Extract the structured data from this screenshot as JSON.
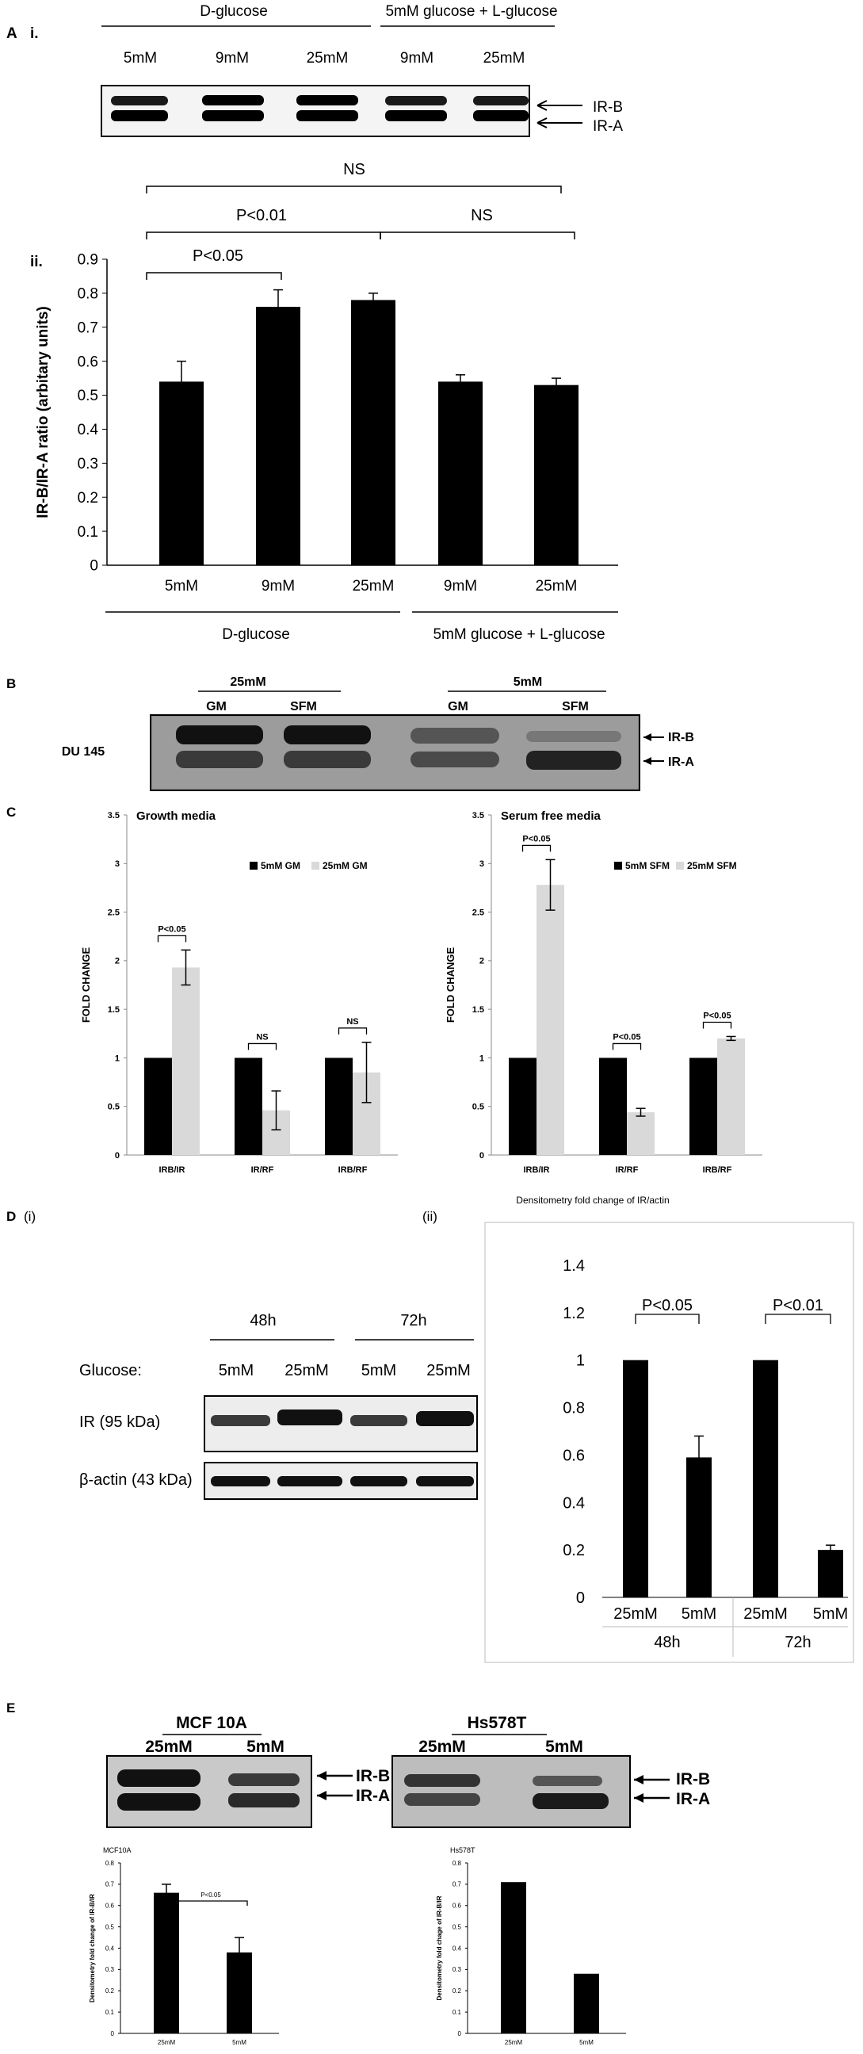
{
  "panels": {
    "A": {
      "panel_label": "A",
      "blot": {
        "sublabel": "i.",
        "group_labels": [
          "D-glucose",
          "5mM glucose + L-glucose"
        ],
        "lane_labels": [
          "5mM",
          "9mM",
          "25mM",
          "9mM",
          "25mM"
        ],
        "band_labels": [
          "IR-B",
          "IR-A"
        ]
      },
      "sig_top": "NS",
      "sig_mid_left": "P<0.01",
      "sig_mid_right": "NS",
      "sig_low": "P<0.05",
      "chart_sublabel": "ii.",
      "group_labels": [
        "D-glucose",
        "5mM glucose + L-glucose"
      ]
    },
    "B": {
      "panel_label": "B",
      "cell_line": "DU 145",
      "conc_labels": [
        "25mM",
        "5mM"
      ],
      "lane_labels": [
        "GM",
        "SFM",
        "GM",
        "SFM"
      ],
      "band_labels": [
        "IR-B",
        "IR-A"
      ]
    },
    "C": {
      "panel_label": "C",
      "sig_left": [
        "P<0.05",
        "NS",
        "NS"
      ],
      "sig_right": [
        "P<0.05",
        "P<0.05",
        "P<0.05"
      ]
    },
    "D": {
      "panel_label": "D",
      "sublabel_i": "(i)",
      "sublabel_ii": "(ii)",
      "blot": {
        "time_labels": [
          "48h",
          "72h"
        ],
        "glucose_label": "Glucose:",
        "lane_labels": [
          "5mM",
          "25mM",
          "5mM",
          "25mM"
        ],
        "row_labels": [
          "IR (95 kDa)",
          "β-actin (43 kDa)"
        ]
      },
      "sig": [
        "P<0.05",
        "P<0.01"
      ]
    },
    "E": {
      "panel_label": "E",
      "blots": [
        {
          "cell_line": "MCF 10A",
          "lane_labels": [
            "25mM",
            "5mM"
          ],
          "band_labels": [
            "IR-B",
            "IR-A"
          ]
        },
        {
          "cell_line": "Hs578T",
          "lane_labels": [
            "25mM",
            "5mM"
          ],
          "band_labels": [
            "IR-B",
            "IR-A"
          ]
        }
      ],
      "sig": "P<0.05"
    }
  },
  "chart_data": [
    {
      "id": "A-ii",
      "type": "bar",
      "categories": [
        "5mM",
        "9mM",
        "25mM",
        "9mM",
        "25mM"
      ],
      "values": [
        0.54,
        0.76,
        0.78,
        0.54,
        0.53
      ],
      "errors": [
        0.06,
        0.05,
        0.02,
        0.02,
        0.02
      ],
      "ylabel": "IR-B/IR-A ratio (arbitary units)",
      "ylim": [
        0,
        0.9
      ],
      "yticks": [
        "0",
        "0.1",
        "0.2",
        "0.3",
        "0.4",
        "0.5",
        "0.6",
        "0.7",
        "0.8",
        "0.9"
      ],
      "colors": [
        "#000000"
      ]
    },
    {
      "id": "C-left",
      "type": "bar",
      "title": "Growth media",
      "categories": [
        "IRB/IR",
        "IR/RF",
        "IRB/RF"
      ],
      "series": [
        {
          "name": "5mM GM",
          "values": [
            1,
            1,
            1
          ],
          "errors": [
            0,
            0,
            0
          ],
          "color": "#000000"
        },
        {
          "name": "25mM GM",
          "values": [
            1.93,
            0.46,
            0.85
          ],
          "errors": [
            0.18,
            0.2,
            0.31
          ],
          "color": "#d9d9d9"
        }
      ],
      "ylabel": "FOLD CHANGE",
      "ylim": [
        0,
        3.5
      ],
      "yticks": [
        "0",
        "0.5",
        "1",
        "1.5",
        "2",
        "2.5",
        "3",
        "3.5"
      ],
      "legend": "top-right"
    },
    {
      "id": "C-right",
      "type": "bar",
      "title": "Serum free media",
      "categories": [
        "IRB/IR",
        "IR/RF",
        "IRB/RF"
      ],
      "series": [
        {
          "name": "5mM SFM",
          "values": [
            1,
            1,
            1
          ],
          "errors": [
            0,
            0,
            0
          ],
          "color": "#000000"
        },
        {
          "name": "25mM SFM",
          "values": [
            2.78,
            0.44,
            1.2
          ],
          "errors": [
            0.26,
            0.04,
            0.02
          ],
          "color": "#d9d9d9"
        }
      ],
      "ylabel": "FOLD CHANGE",
      "ylim": [
        0,
        3.5
      ],
      "yticks": [
        "0",
        "0.5",
        "1",
        "1.5",
        "2",
        "2.5",
        "3",
        "3.5"
      ],
      "legend": "top-right"
    },
    {
      "id": "D-ii",
      "type": "bar",
      "title": "Densitometry fold change of IR/actin",
      "categories": [
        "25mM",
        "5mM",
        "25mM",
        "5mM"
      ],
      "groups": [
        "48h",
        "72h"
      ],
      "values": [
        1,
        0.59,
        1,
        0.2
      ],
      "errors": [
        0,
        0.09,
        0,
        0.02
      ],
      "ylim": [
        0,
        1.4
      ],
      "yticks": [
        "0",
        "0.2",
        "0.4",
        "0.6",
        "0.8",
        "1",
        "1.2",
        "1.4"
      ],
      "colors": [
        "#000000"
      ]
    },
    {
      "id": "E-left",
      "type": "bar",
      "title": "MCF10A",
      "categories": [
        "25mM",
        "5mM"
      ],
      "values": [
        0.66,
        0.38
      ],
      "errors": [
        0.04,
        0.07
      ],
      "ylabel": "Densitometry fold change of IR-B/IR",
      "ylim": [
        0,
        0.8
      ],
      "yticks": [
        "0",
        "0.1",
        "0.2",
        "0.3",
        "0.4",
        "0.5",
        "0.6",
        "0.7",
        "0.8"
      ]
    },
    {
      "id": "E-right",
      "type": "bar",
      "title": "Hs578T",
      "categories": [
        "25mM",
        "5mM"
      ],
      "values": [
        0.71,
        0.28
      ],
      "errors": [
        0,
        0
      ],
      "ylabel": "Densitometry fold chage of IR-B/IR",
      "ylim": [
        0,
        0.8
      ],
      "yticks": [
        "0",
        "0.1",
        "0.2",
        "0.3",
        "0.4",
        "0.5",
        "0.6",
        "0.7",
        "0.8"
      ]
    }
  ]
}
